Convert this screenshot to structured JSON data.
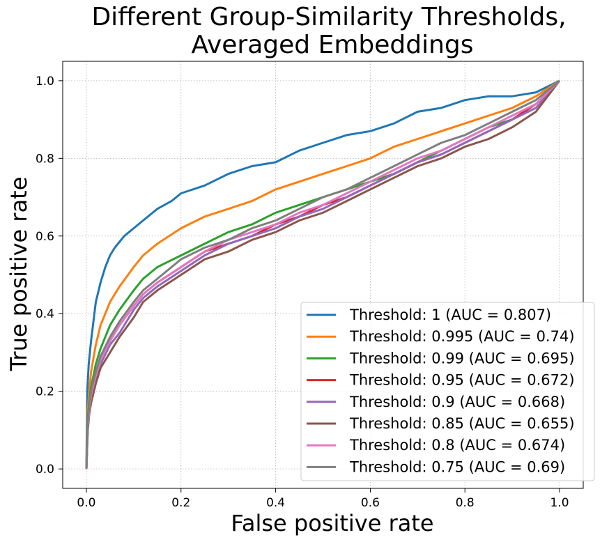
{
  "chart_data": {
    "type": "line",
    "title_lines": [
      "Different Group-Similarity Thresholds,",
      "Averaged Embeddings"
    ],
    "xlabel": "False positive rate",
    "ylabel": "True positive rate",
    "xlim": [
      -0.05,
      1.05
    ],
    "ylim": [
      -0.05,
      1.05
    ],
    "xticks": [
      0.0,
      0.2,
      0.4,
      0.6,
      0.8,
      1.0
    ],
    "yticks": [
      0.0,
      0.2,
      0.4,
      0.6,
      0.8,
      1.0
    ],
    "xtick_labels": [
      "0.0",
      "0.2",
      "0.4",
      "0.6",
      "0.8",
      "1.0"
    ],
    "ytick_labels": [
      "0.0",
      "0.2",
      "0.4",
      "0.6",
      "0.8",
      "1.0"
    ],
    "grid": true,
    "grid_style": "dotted",
    "legend_position": "lower-right",
    "series": [
      {
        "name": "Threshold: 1 (AUC = 0.807)",
        "color": "#1f77b4",
        "x": [
          0,
          0.002,
          0.005,
          0.01,
          0.015,
          0.02,
          0.03,
          0.04,
          0.05,
          0.06,
          0.08,
          0.1,
          0.12,
          0.15,
          0.18,
          0.2,
          0.25,
          0.3,
          0.35,
          0.4,
          0.45,
          0.5,
          0.55,
          0.6,
          0.65,
          0.7,
          0.75,
          0.8,
          0.85,
          0.9,
          0.95,
          1.0
        ],
        "y": [
          0,
          0.2,
          0.27,
          0.33,
          0.38,
          0.43,
          0.48,
          0.52,
          0.55,
          0.57,
          0.6,
          0.62,
          0.64,
          0.67,
          0.69,
          0.71,
          0.73,
          0.76,
          0.78,
          0.79,
          0.82,
          0.84,
          0.86,
          0.87,
          0.89,
          0.92,
          0.93,
          0.95,
          0.96,
          0.96,
          0.97,
          1.0
        ]
      },
      {
        "name": "Threshold: 0.995 (AUC = 0.74)",
        "color": "#ff7f0e",
        "x": [
          0,
          0.003,
          0.006,
          0.01,
          0.02,
          0.03,
          0.04,
          0.05,
          0.07,
          0.1,
          0.12,
          0.15,
          0.2,
          0.25,
          0.3,
          0.35,
          0.4,
          0.45,
          0.5,
          0.55,
          0.6,
          0.65,
          0.7,
          0.75,
          0.8,
          0.85,
          0.9,
          0.95,
          1.0
        ],
        "y": [
          0,
          0.15,
          0.2,
          0.25,
          0.32,
          0.37,
          0.4,
          0.43,
          0.47,
          0.52,
          0.55,
          0.58,
          0.62,
          0.65,
          0.67,
          0.69,
          0.72,
          0.74,
          0.76,
          0.78,
          0.8,
          0.83,
          0.85,
          0.87,
          0.89,
          0.91,
          0.93,
          0.96,
          1.0
        ]
      },
      {
        "name": "Threshold: 0.99 (AUC = 0.695)",
        "color": "#2ca02c",
        "x": [
          0,
          0.003,
          0.006,
          0.01,
          0.02,
          0.03,
          0.05,
          0.07,
          0.1,
          0.12,
          0.15,
          0.2,
          0.25,
          0.3,
          0.35,
          0.4,
          0.45,
          0.5,
          0.55,
          0.6,
          0.65,
          0.7,
          0.75,
          0.8,
          0.85,
          0.9,
          0.95,
          1.0
        ],
        "y": [
          0,
          0.13,
          0.17,
          0.21,
          0.27,
          0.31,
          0.37,
          0.41,
          0.46,
          0.49,
          0.52,
          0.55,
          0.58,
          0.61,
          0.63,
          0.66,
          0.68,
          0.7,
          0.72,
          0.74,
          0.76,
          0.79,
          0.82,
          0.85,
          0.88,
          0.9,
          0.94,
          1.0
        ]
      },
      {
        "name": "Threshold: 0.95 (AUC = 0.672)",
        "color": "#d62728",
        "x": [
          0,
          0.003,
          0.006,
          0.01,
          0.02,
          0.03,
          0.05,
          0.07,
          0.1,
          0.12,
          0.15,
          0.2,
          0.25,
          0.3,
          0.35,
          0.4,
          0.45,
          0.5,
          0.55,
          0.6,
          0.65,
          0.7,
          0.75,
          0.8,
          0.85,
          0.9,
          0.95,
          1.0
        ],
        "y": [
          0,
          0.12,
          0.16,
          0.19,
          0.24,
          0.28,
          0.33,
          0.37,
          0.42,
          0.45,
          0.48,
          0.52,
          0.56,
          0.58,
          0.6,
          0.63,
          0.65,
          0.68,
          0.7,
          0.73,
          0.76,
          0.79,
          0.81,
          0.84,
          0.87,
          0.9,
          0.94,
          1.0
        ]
      },
      {
        "name": "Threshold: 0.9 (AUC = 0.668)",
        "color": "#9467bd",
        "x": [
          0,
          0.003,
          0.006,
          0.01,
          0.02,
          0.03,
          0.05,
          0.07,
          0.1,
          0.12,
          0.15,
          0.2,
          0.25,
          0.3,
          0.35,
          0.4,
          0.45,
          0.5,
          0.55,
          0.6,
          0.65,
          0.7,
          0.75,
          0.8,
          0.85,
          0.9,
          0.95,
          1.0
        ],
        "y": [
          0,
          0.11,
          0.15,
          0.18,
          0.23,
          0.27,
          0.32,
          0.35,
          0.41,
          0.44,
          0.47,
          0.51,
          0.55,
          0.58,
          0.6,
          0.62,
          0.65,
          0.67,
          0.7,
          0.73,
          0.76,
          0.79,
          0.81,
          0.84,
          0.87,
          0.9,
          0.93,
          1.0
        ]
      },
      {
        "name": "Threshold: 0.85 (AUC = 0.655)",
        "color": "#8c564b",
        "x": [
          0,
          0.003,
          0.006,
          0.01,
          0.02,
          0.03,
          0.05,
          0.07,
          0.1,
          0.12,
          0.15,
          0.2,
          0.25,
          0.3,
          0.35,
          0.4,
          0.45,
          0.5,
          0.55,
          0.6,
          0.65,
          0.7,
          0.75,
          0.8,
          0.85,
          0.9,
          0.95,
          1.0
        ],
        "y": [
          0,
          0.1,
          0.14,
          0.17,
          0.22,
          0.26,
          0.3,
          0.34,
          0.39,
          0.43,
          0.46,
          0.5,
          0.54,
          0.56,
          0.59,
          0.61,
          0.64,
          0.66,
          0.69,
          0.72,
          0.75,
          0.78,
          0.8,
          0.83,
          0.85,
          0.88,
          0.92,
          1.0
        ]
      },
      {
        "name": "Threshold: 0.8 (AUC = 0.674)",
        "color": "#e377c2",
        "x": [
          0,
          0.003,
          0.006,
          0.01,
          0.02,
          0.03,
          0.05,
          0.07,
          0.1,
          0.12,
          0.15,
          0.2,
          0.25,
          0.3,
          0.35,
          0.4,
          0.45,
          0.5,
          0.55,
          0.6,
          0.65,
          0.7,
          0.75,
          0.8,
          0.85,
          0.9,
          0.95,
          1.0
        ],
        "y": [
          0,
          0.11,
          0.15,
          0.19,
          0.24,
          0.28,
          0.33,
          0.37,
          0.42,
          0.45,
          0.48,
          0.52,
          0.56,
          0.59,
          0.61,
          0.63,
          0.66,
          0.68,
          0.71,
          0.74,
          0.77,
          0.8,
          0.82,
          0.85,
          0.88,
          0.91,
          0.94,
          1.0
        ]
      },
      {
        "name": "Threshold: 0.75 (AUC = 0.69)",
        "color": "#7f7f7f",
        "x": [
          0,
          0.003,
          0.006,
          0.01,
          0.02,
          0.03,
          0.05,
          0.07,
          0.1,
          0.12,
          0.15,
          0.2,
          0.25,
          0.3,
          0.35,
          0.4,
          0.45,
          0.5,
          0.55,
          0.6,
          0.65,
          0.7,
          0.75,
          0.8,
          0.85,
          0.9,
          0.95,
          1.0
        ],
        "y": [
          0,
          0.12,
          0.16,
          0.2,
          0.25,
          0.29,
          0.34,
          0.38,
          0.43,
          0.46,
          0.49,
          0.54,
          0.57,
          0.59,
          0.62,
          0.64,
          0.67,
          0.7,
          0.72,
          0.75,
          0.78,
          0.81,
          0.84,
          0.86,
          0.89,
          0.92,
          0.95,
          1.0
        ]
      }
    ]
  }
}
